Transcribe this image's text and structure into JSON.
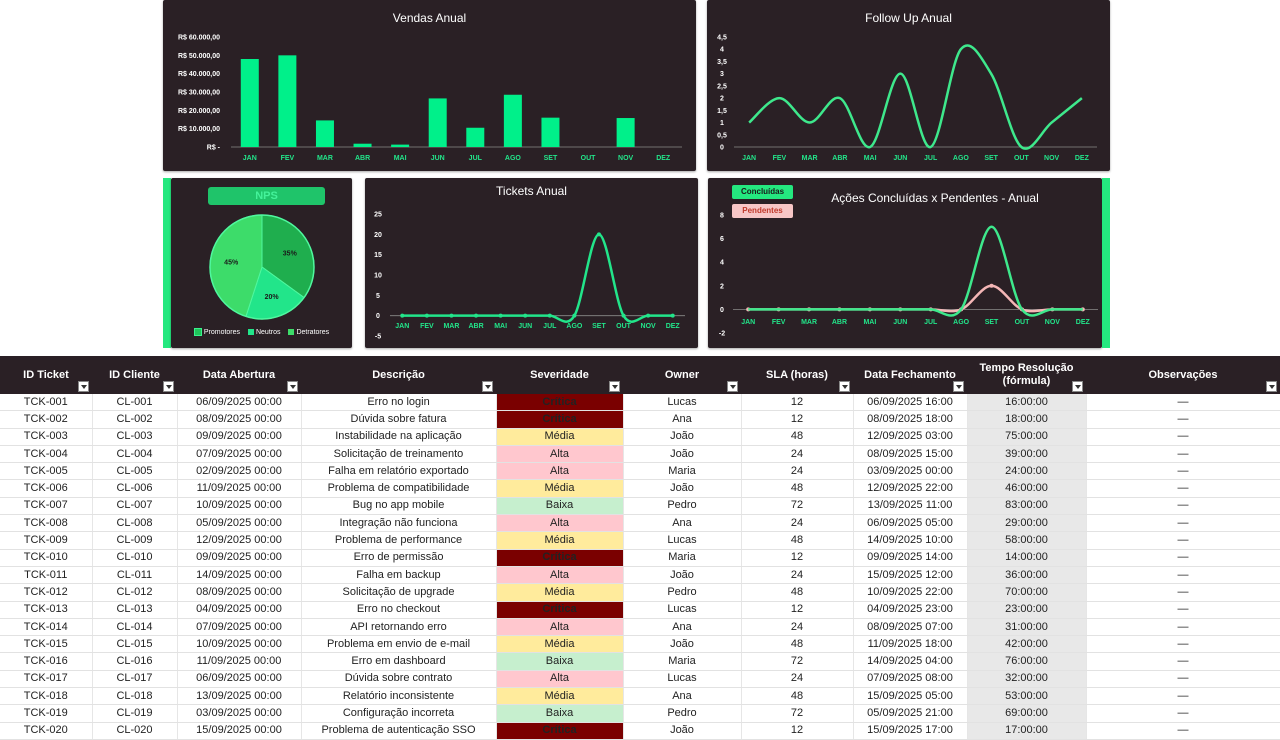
{
  "months": [
    "JAN",
    "FEV",
    "MAR",
    "ABR",
    "MAI",
    "JUN",
    "JUL",
    "AGO",
    "SET",
    "OUT",
    "NOV",
    "DEZ"
  ],
  "colors": {
    "panel_bg": "#2a2025",
    "accent_green": "#24e87f",
    "pink": "#f4b6b6"
  },
  "vendas": {
    "title": "Vendas Anual",
    "y_ticks": [
      "R$ -",
      "R$ 10.000,00",
      "R$ 20.000,00",
      "R$ 30.000,00",
      "R$ 40.000,00",
      "R$ 50.000,00",
      "R$ 60.000,00"
    ]
  },
  "follow": {
    "title": "Follow Up Anual",
    "y_ticks": [
      "0",
      "0,5",
      "1",
      "1,5",
      "2",
      "2,5",
      "3",
      "3,5",
      "4",
      "4,5"
    ]
  },
  "nps": {
    "title": "NPS",
    "labels": [
      "35%",
      "20%",
      "45%"
    ],
    "legend": [
      "Promotores",
      "Neutros",
      "Detratores"
    ]
  },
  "tickets": {
    "title": "Tickets Anual",
    "y_ticks": [
      "-5",
      "0",
      "5",
      "10",
      "15",
      "20",
      "25"
    ]
  },
  "acoes": {
    "title": "Ações Concluídas x Pendentes - Anual",
    "legend_concluidas": "Concluídas",
    "legend_pendentes": "Pendentes",
    "y_ticks": [
      "-2",
      "0",
      "2",
      "4",
      "6",
      "8"
    ]
  },
  "chart_data": [
    {
      "type": "bar",
      "title": "Vendas Anual",
      "categories": [
        "JAN",
        "FEV",
        "MAR",
        "ABR",
        "MAI",
        "JUN",
        "JUL",
        "AGO",
        "SET",
        "OUT",
        "NOV",
        "DEZ"
      ],
      "values": [
        48000,
        50000,
        14500,
        1800,
        1300,
        26500,
        10500,
        28500,
        16000,
        0,
        15800,
        0
      ],
      "ylim": [
        0,
        60000
      ]
    },
    {
      "type": "line",
      "title": "Follow Up Anual",
      "categories": [
        "JAN",
        "FEV",
        "MAR",
        "ABR",
        "MAI",
        "JUN",
        "JUL",
        "AGO",
        "SET",
        "OUT",
        "NOV",
        "DEZ"
      ],
      "values": [
        1,
        2,
        1,
        2,
        0,
        3,
        0,
        4,
        3,
        0,
        1,
        2
      ],
      "ylim": [
        0,
        4.5
      ]
    },
    {
      "type": "pie",
      "title": "NPS",
      "categories": [
        "Promotores",
        "Neutros",
        "Detratores"
      ],
      "values": [
        35,
        20,
        45
      ]
    },
    {
      "type": "line",
      "title": "Tickets Anual",
      "categories": [
        "JAN",
        "FEV",
        "MAR",
        "ABR",
        "MAI",
        "JUN",
        "JUL",
        "AGO",
        "SET",
        "OUT",
        "NOV",
        "DEZ"
      ],
      "values": [
        0,
        0,
        0,
        0,
        0,
        0,
        0,
        0,
        20,
        0,
        0,
        0
      ],
      "ylim": [
        -5,
        25
      ]
    },
    {
      "type": "line",
      "title": "Ações Concluídas x Pendentes - Anual",
      "categories": [
        "JAN",
        "FEV",
        "MAR",
        "ABR",
        "MAI",
        "JUN",
        "JUL",
        "AGO",
        "SET",
        "OUT",
        "NOV",
        "DEZ"
      ],
      "series": [
        {
          "name": "Concluídas",
          "values": [
            0,
            0,
            0,
            0,
            0,
            0,
            0,
            0,
            7,
            0,
            0,
            0
          ]
        },
        {
          "name": "Pendentes",
          "values": [
            0,
            0,
            0,
            0,
            0,
            0,
            0,
            0,
            2,
            0,
            0,
            0
          ]
        }
      ],
      "ylim": [
        -2,
        8
      ]
    }
  ],
  "table": {
    "headers": [
      "ID Ticket",
      "ID Cliente",
      "Data Abertura",
      "Descrição",
      "Severidade",
      "Owner",
      "SLA (horas)",
      "Data Fechamento",
      "Tempo Resolução (fórmula)",
      "Observações"
    ],
    "rows": [
      [
        "TCK-001",
        "CL-001",
        "06/09/2025 00:00",
        "Erro no login",
        "Crítica",
        "Lucas",
        "12",
        "06/09/2025 16:00",
        "16:00:00",
        "—"
      ],
      [
        "TCK-002",
        "CL-002",
        "08/09/2025 00:00",
        "Dúvida sobre fatura",
        "Crítica",
        "Ana",
        "12",
        "08/09/2025 18:00",
        "18:00:00",
        "—"
      ],
      [
        "TCK-003",
        "CL-003",
        "09/09/2025 00:00",
        "Instabilidade na aplicação",
        "Média",
        "João",
        "48",
        "12/09/2025 03:00",
        "75:00:00",
        "—"
      ],
      [
        "TCK-004",
        "CL-004",
        "07/09/2025 00:00",
        "Solicitação de treinamento",
        "Alta",
        "João",
        "24",
        "08/09/2025 15:00",
        "39:00:00",
        "—"
      ],
      [
        "TCK-005",
        "CL-005",
        "02/09/2025 00:00",
        "Falha em relatório exportado",
        "Alta",
        "Maria",
        "24",
        "03/09/2025 00:00",
        "24:00:00",
        "—"
      ],
      [
        "TCK-006",
        "CL-006",
        "11/09/2025 00:00",
        "Problema de compatibilidade",
        "Média",
        "João",
        "48",
        "12/09/2025 22:00",
        "46:00:00",
        "—"
      ],
      [
        "TCK-007",
        "CL-007",
        "10/09/2025 00:00",
        "Bug no app mobile",
        "Baixa",
        "Pedro",
        "72",
        "13/09/2025 11:00",
        "83:00:00",
        "—"
      ],
      [
        "TCK-008",
        "CL-008",
        "05/09/2025 00:00",
        "Integração não funciona",
        "Alta",
        "Ana",
        "24",
        "06/09/2025 05:00",
        "29:00:00",
        "—"
      ],
      [
        "TCK-009",
        "CL-009",
        "12/09/2025 00:00",
        "Problema de performance",
        "Média",
        "Lucas",
        "48",
        "14/09/2025 10:00",
        "58:00:00",
        "—"
      ],
      [
        "TCK-010",
        "CL-010",
        "09/09/2025 00:00",
        "Erro de permissão",
        "Crítica",
        "Maria",
        "12",
        "09/09/2025 14:00",
        "14:00:00",
        "—"
      ],
      [
        "TCK-011",
        "CL-011",
        "14/09/2025 00:00",
        "Falha em backup",
        "Alta",
        "João",
        "24",
        "15/09/2025 12:00",
        "36:00:00",
        "—"
      ],
      [
        "TCK-012",
        "CL-012",
        "08/09/2025 00:00",
        "Solicitação de upgrade",
        "Média",
        "Pedro",
        "48",
        "10/09/2025 22:00",
        "70:00:00",
        "—"
      ],
      [
        "TCK-013",
        "CL-013",
        "04/09/2025 00:00",
        "Erro no checkout",
        "Crítica",
        "Lucas",
        "12",
        "04/09/2025 23:00",
        "23:00:00",
        "—"
      ],
      [
        "TCK-014",
        "CL-014",
        "07/09/2025 00:00",
        "API retornando erro",
        "Alta",
        "Ana",
        "24",
        "08/09/2025 07:00",
        "31:00:00",
        "—"
      ],
      [
        "TCK-015",
        "CL-015",
        "10/09/2025 00:00",
        "Problema em envio de e-mail",
        "Média",
        "João",
        "48",
        "11/09/2025 18:00",
        "42:00:00",
        "—"
      ],
      [
        "TCK-016",
        "CL-016",
        "11/09/2025 00:00",
        "Erro em dashboard",
        "Baixa",
        "Maria",
        "72",
        "14/09/2025 04:00",
        "76:00:00",
        "—"
      ],
      [
        "TCK-017",
        "CL-017",
        "06/09/2025 00:00",
        "Dúvida sobre contrato",
        "Alta",
        "Lucas",
        "24",
        "07/09/2025 08:00",
        "32:00:00",
        "—"
      ],
      [
        "TCK-018",
        "CL-018",
        "13/09/2025 00:00",
        "Relatório inconsistente",
        "Média",
        "Ana",
        "48",
        "15/09/2025 05:00",
        "53:00:00",
        "—"
      ],
      [
        "TCK-019",
        "CL-019",
        "03/09/2025 00:00",
        "Configuração incorreta",
        "Baixa",
        "Pedro",
        "72",
        "05/09/2025 21:00",
        "69:00:00",
        "—"
      ],
      [
        "TCK-020",
        "CL-020",
        "15/09/2025 00:00",
        "Problema de autenticação SSO",
        "Crítica",
        "João",
        "12",
        "15/09/2025 17:00",
        "17:00:00",
        "—"
      ]
    ]
  }
}
